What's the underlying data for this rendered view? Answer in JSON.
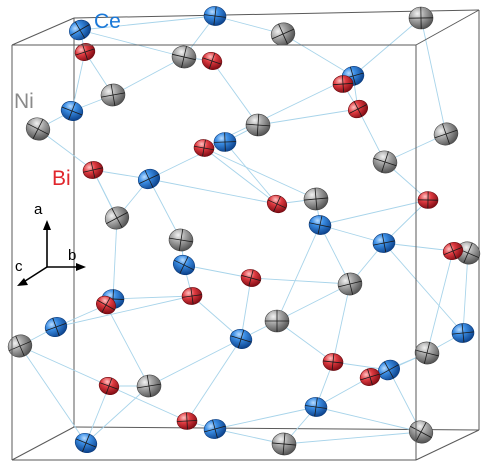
{
  "legend": {
    "ce": {
      "label": "Ce",
      "color": "#1a78d8"
    },
    "ni": {
      "label": "Ni",
      "color": "#8a8a8a"
    },
    "bi": {
      "label": "Bi",
      "color": "#e0262c"
    }
  },
  "axes": {
    "a": "a",
    "b": "b",
    "c": "c"
  },
  "colors": {
    "cell_edge": "#5a5a5a",
    "bond": "#a8d4ea",
    "ce_fill": "#1a72d6",
    "ni_fill": "#9a9a9a",
    "bi_fill": "#d4222a"
  }
}
